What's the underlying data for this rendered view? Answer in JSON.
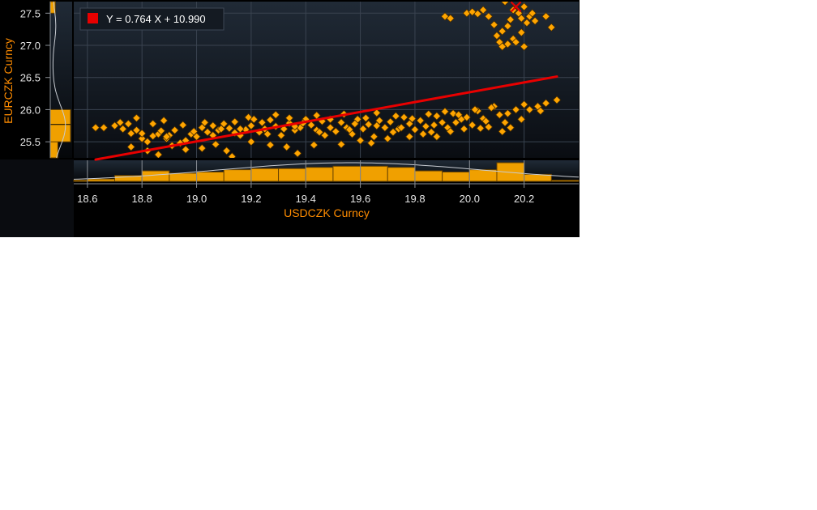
{
  "chart_data": {
    "type": "scatter",
    "xlabel": "USDCZK Curncy",
    "ylabel": "EURCZK Curncy",
    "xlim": [
      18.55,
      20.4
    ],
    "ylim": [
      25.25,
      27.68
    ],
    "x_ticks": [
      "18.6",
      "18.8",
      "19.0",
      "19.2",
      "19.4",
      "19.6",
      "19.8",
      "20.0",
      "20.2"
    ],
    "y_ticks": [
      "25.5",
      "26.0",
      "26.5",
      "27.0",
      "27.5"
    ],
    "regression": {
      "label": "Y = 0.764 X + 10.990",
      "slope": 0.764,
      "intercept": 10.99,
      "x_range": [
        18.63,
        20.32
      ],
      "color": "#e80000"
    },
    "marker_color": "#ffa500",
    "latest_point": {
      "x": 20.17,
      "y": 27.6
    },
    "x_histogram": {
      "bin_edges": [
        18.5,
        18.6,
        18.7,
        18.8,
        18.9,
        19.0,
        19.1,
        19.2,
        19.3,
        19.4,
        19.5,
        19.6,
        19.7,
        19.8,
        19.9,
        20.0,
        20.1,
        20.2,
        20.3,
        20.4
      ],
      "counts": [
        1,
        2,
        5,
        9,
        7,
        8,
        10,
        11,
        11,
        12,
        13,
        13,
        12,
        9,
        8,
        10,
        16,
        6,
        1
      ]
    },
    "y_histogram": {
      "bin_edges": [
        25.0,
        25.2,
        25.5,
        26.0,
        26.5,
        27.0,
        27.5,
        27.7
      ],
      "counts": [
        1,
        3,
        8,
        0,
        0,
        0,
        2
      ]
    },
    "series": [
      {
        "points": [
          [
            18.63,
            25.72
          ],
          [
            18.66,
            25.72
          ],
          [
            18.7,
            25.75
          ],
          [
            18.73,
            25.7
          ],
          [
            18.75,
            25.78
          ],
          [
            18.76,
            25.63
          ],
          [
            18.78,
            25.68
          ],
          [
            18.8,
            25.55
          ],
          [
            18.82,
            25.5
          ],
          [
            18.84,
            25.59
          ],
          [
            18.86,
            25.62
          ],
          [
            18.87,
            25.67
          ],
          [
            18.89,
            25.55
          ],
          [
            18.9,
            25.6
          ],
          [
            18.92,
            25.68
          ],
          [
            18.94,
            25.48
          ],
          [
            18.96,
            25.52
          ],
          [
            18.98,
            25.62
          ],
          [
            19.0,
            25.58
          ],
          [
            19.02,
            25.72
          ],
          [
            19.04,
            25.65
          ],
          [
            19.06,
            25.75
          ],
          [
            19.08,
            25.68
          ],
          [
            19.1,
            25.78
          ],
          [
            19.12,
            25.71
          ],
          [
            19.14,
            25.64
          ],
          [
            19.16,
            25.6
          ],
          [
            19.18,
            25.69
          ],
          [
            19.2,
            25.75
          ],
          [
            19.21,
            25.85
          ],
          [
            19.23,
            25.65
          ],
          [
            19.25,
            25.7
          ],
          [
            19.27,
            25.84
          ],
          [
            19.29,
            25.74
          ],
          [
            19.31,
            25.6
          ],
          [
            19.32,
            25.7
          ],
          [
            19.34,
            25.79
          ],
          [
            19.36,
            25.68
          ],
          [
            19.38,
            25.72
          ],
          [
            19.4,
            25.85
          ],
          [
            19.42,
            25.76
          ],
          [
            19.44,
            25.68
          ],
          [
            19.46,
            25.82
          ],
          [
            19.47,
            25.6
          ],
          [
            19.49,
            25.72
          ],
          [
            19.51,
            25.66
          ],
          [
            19.53,
            25.8
          ],
          [
            19.55,
            25.72
          ],
          [
            19.57,
            25.62
          ],
          [
            19.59,
            25.85
          ],
          [
            19.61,
            25.7
          ],
          [
            19.63,
            25.77
          ],
          [
            19.65,
            25.58
          ],
          [
            19.67,
            25.83
          ],
          [
            19.69,
            25.72
          ],
          [
            19.71,
            25.81
          ],
          [
            19.72,
            25.65
          ],
          [
            19.74,
            25.7
          ],
          [
            19.76,
            25.88
          ],
          [
            19.78,
            25.78
          ],
          [
            19.8,
            25.69
          ],
          [
            19.82,
            25.83
          ],
          [
            19.84,
            25.74
          ],
          [
            19.86,
            25.65
          ],
          [
            19.88,
            25.9
          ],
          [
            19.9,
            25.8
          ],
          [
            19.92,
            25.72
          ],
          [
            19.94,
            25.94
          ],
          [
            19.97,
            25.85
          ],
          [
            19.99,
            25.88
          ],
          [
            20.01,
            25.76
          ],
          [
            20.03,
            25.98
          ],
          [
            20.05,
            25.86
          ],
          [
            20.07,
            25.73
          ],
          [
            20.09,
            26.05
          ],
          [
            20.11,
            25.92
          ],
          [
            20.13,
            25.8
          ],
          [
            20.15,
            25.72
          ],
          [
            20.17,
            26.0
          ],
          [
            20.19,
            25.85
          ],
          [
            20.22,
            26.0
          ],
          [
            20.25,
            26.05
          ],
          [
            20.28,
            26.1
          ],
          [
            20.32,
            26.15
          ],
          [
            18.76,
            25.42
          ],
          [
            18.82,
            25.36
          ],
          [
            18.86,
            25.3
          ],
          [
            18.91,
            25.44
          ],
          [
            18.96,
            25.38
          ],
          [
            19.02,
            25.4
          ],
          [
            19.07,
            25.46
          ],
          [
            19.11,
            25.36
          ],
          [
            19.13,
            25.27
          ],
          [
            19.2,
            25.5
          ],
          [
            19.27,
            25.45
          ],
          [
            19.33,
            25.42
          ],
          [
            19.37,
            25.32
          ],
          [
            19.43,
            25.45
          ],
          [
            19.53,
            25.46
          ],
          [
            19.6,
            25.52
          ],
          [
            19.64,
            25.48
          ],
          [
            19.7,
            25.55
          ],
          [
            19.78,
            25.58
          ],
          [
            19.83,
            25.62
          ],
          [
            19.88,
            25.58
          ],
          [
            19.93,
            25.66
          ],
          [
            19.98,
            25.7
          ],
          [
            20.04,
            25.71
          ],
          [
            20.12,
            25.66
          ],
          [
            18.72,
            25.8
          ],
          [
            18.78,
            25.87
          ],
          [
            18.84,
            25.78
          ],
          [
            18.88,
            25.83
          ],
          [
            18.95,
            25.76
          ],
          [
            19.03,
            25.8
          ],
          [
            19.09,
            25.7
          ],
          [
            19.14,
            25.81
          ],
          [
            19.19,
            25.88
          ],
          [
            19.24,
            25.8
          ],
          [
            19.29,
            25.92
          ],
          [
            19.34,
            25.87
          ],
          [
            19.39,
            25.79
          ],
          [
            19.44,
            25.91
          ],
          [
            19.49,
            25.85
          ],
          [
            19.54,
            25.93
          ],
          [
            19.58,
            25.78
          ],
          [
            19.62,
            25.87
          ],
          [
            19.66,
            25.95
          ],
          [
            19.73,
            25.9
          ],
          [
            19.79,
            25.86
          ],
          [
            19.85,
            25.93
          ],
          [
            19.91,
            25.97
          ],
          [
            19.96,
            25.92
          ],
          [
            20.02,
            26.0
          ],
          [
            20.08,
            26.03
          ],
          [
            20.14,
            25.94
          ],
          [
            20.2,
            26.08
          ],
          [
            20.26,
            25.98
          ],
          [
            18.8,
            25.63
          ],
          [
            18.89,
            25.58
          ],
          [
            18.99,
            25.66
          ],
          [
            19.06,
            25.6
          ],
          [
            19.16,
            25.7
          ],
          [
            19.26,
            25.62
          ],
          [
            19.36,
            25.74
          ],
          [
            19.45,
            25.65
          ],
          [
            19.56,
            25.69
          ],
          [
            19.66,
            25.75
          ],
          [
            19.75,
            25.72
          ],
          [
            19.87,
            25.76
          ],
          [
            19.95,
            25.8
          ],
          [
            20.06,
            25.82
          ],
          [
            19.91,
            27.45
          ],
          [
            19.93,
            27.42
          ],
          [
            19.99,
            27.5
          ],
          [
            20.01,
            27.52
          ],
          [
            20.03,
            27.49
          ],
          [
            20.05,
            27.55
          ],
          [
            20.07,
            27.45
          ],
          [
            20.09,
            27.32
          ],
          [
            20.1,
            27.15
          ],
          [
            20.11,
            27.05
          ],
          [
            20.12,
            26.98
          ],
          [
            20.13,
            27.68
          ],
          [
            20.14,
            27.3
          ],
          [
            20.15,
            27.4
          ],
          [
            20.16,
            27.1
          ],
          [
            20.17,
            27.05
          ],
          [
            20.18,
            27.5
          ],
          [
            20.19,
            27.42
          ],
          [
            20.2,
            26.98
          ],
          [
            20.21,
            27.35
          ],
          [
            20.22,
            27.45
          ],
          [
            20.24,
            27.38
          ],
          [
            20.28,
            27.45
          ],
          [
            20.3,
            27.28
          ],
          [
            20.16,
            27.55
          ],
          [
            20.2,
            27.6
          ],
          [
            20.23,
            27.5
          ],
          [
            20.12,
            27.22
          ],
          [
            20.14,
            27.02
          ],
          [
            20.19,
            27.2
          ]
        ]
      }
    ]
  }
}
